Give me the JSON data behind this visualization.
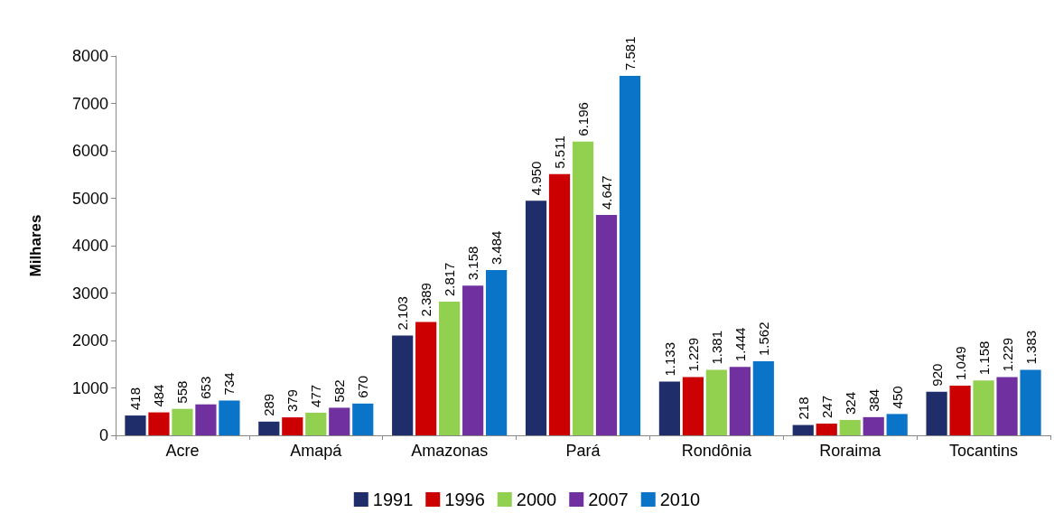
{
  "chart_data": {
    "type": "bar",
    "ylabel": "Milhares",
    "categories": [
      "Acre",
      "Amapá",
      "Amazonas",
      "Pará",
      "Rondônia",
      "Roraima",
      "Tocantins"
    ],
    "series": [
      {
        "name": "1991",
        "color": "#1f2d6b",
        "values": [
          418,
          289,
          2103,
          4950,
          1133,
          218,
          920
        ],
        "value_labels": [
          "418",
          "289",
          "2.103",
          "4.950",
          "1.133",
          "218",
          "920"
        ]
      },
      {
        "name": "1996",
        "color": "#cc0000",
        "values": [
          484,
          379,
          2389,
          5511,
          1229,
          247,
          1049
        ],
        "value_labels": [
          "484",
          "379",
          "2.389",
          "5.511",
          "1.229",
          "247",
          "1.049"
        ]
      },
      {
        "name": "2000",
        "color": "#92d050",
        "values": [
          558,
          477,
          2817,
          6196,
          1381,
          324,
          1158
        ],
        "value_labels": [
          "558",
          "477",
          "2.817",
          "6.196",
          "1.381",
          "324",
          "1.158"
        ]
      },
      {
        "name": "2007",
        "color": "#7030a0",
        "values": [
          653,
          582,
          3158,
          4647,
          1444,
          384,
          1229
        ],
        "value_labels": [
          "653",
          "582",
          "3.158",
          "4.647",
          "1.444",
          "384",
          "1.229"
        ]
      },
      {
        "name": "2010",
        "color": "#0a74c8",
        "values": [
          734,
          670,
          3484,
          7581,
          1562,
          450,
          1383
        ],
        "value_labels": [
          "734",
          "670",
          "3.484",
          "7.581",
          "1.562",
          "450",
          "1.383"
        ]
      }
    ],
    "ylim": [
      0,
      8000
    ],
    "yticks": [
      0,
      1000,
      2000,
      3000,
      4000,
      5000,
      6000,
      7000,
      8000
    ],
    "grid": false,
    "legend": "bottom"
  }
}
